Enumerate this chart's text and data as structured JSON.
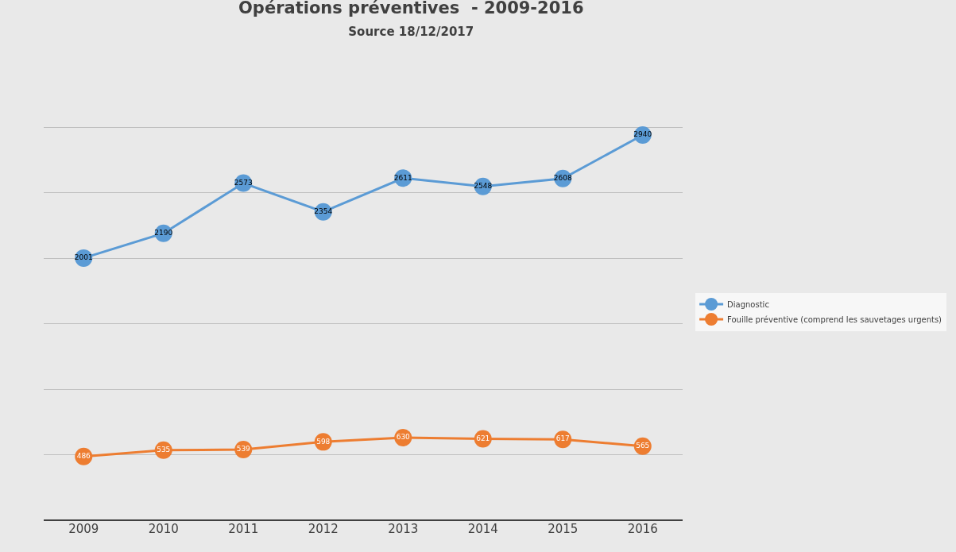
{
  "chart_data": {
    "type": "line",
    "title": "Opérations préventives  - 2009-2016",
    "subtitle": "Source 18/12/2017",
    "categories": [
      "2009",
      "2010",
      "2011",
      "2012",
      "2013",
      "2014",
      "2015",
      "2016"
    ],
    "series": [
      {
        "name": "Diagnostic",
        "color": "#5b9bd5",
        "values": [
          2001,
          2190,
          2573,
          2354,
          2611,
          2548,
          2608,
          2940
        ]
      },
      {
        "name": "Fouille préventive (comprend les sauvetages urgents)",
        "color": "#ed7d31",
        "values": [
          486,
          535,
          539,
          598,
          630,
          621,
          617,
          565
        ]
      }
    ],
    "tick_labels": "x",
    "grid": "y",
    "legend": "right",
    "marker": "circle",
    "line_style": "solid",
    "data_labels": true
  }
}
